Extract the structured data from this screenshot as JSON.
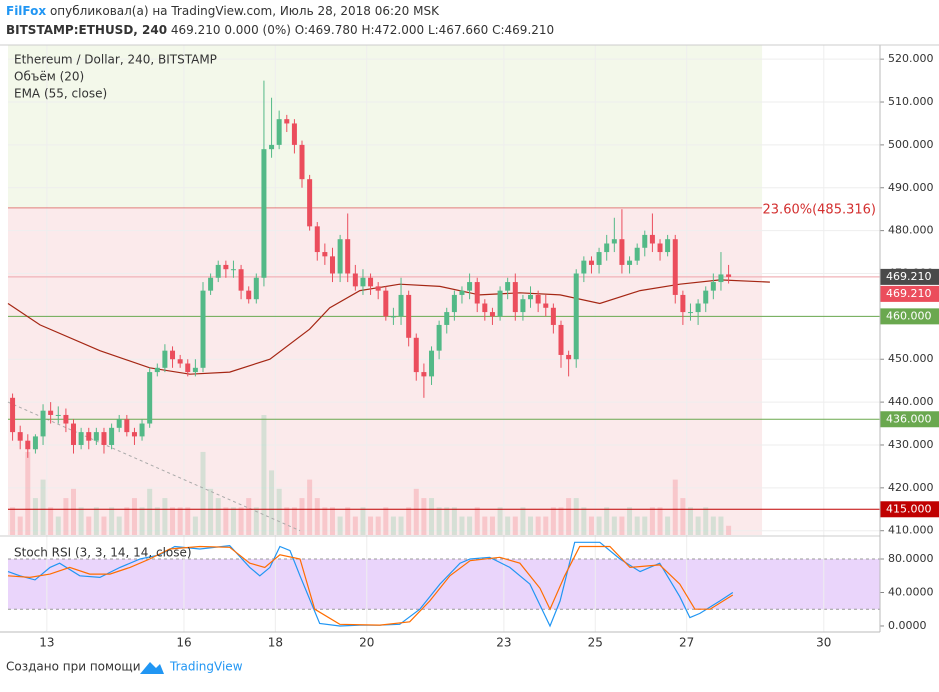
{
  "header": {
    "author": "FilFox",
    "published": "опубликовал(а) на TradingView.com, Июль 28, 2018 06:20 MSK",
    "symbol": "BITSTAMP:ETHUSD, 240",
    "quote": "469.210 0.000 (0%) O:469.780 H:472.000 L:467.660 C:469.210"
  },
  "footer": {
    "text": "Создано при помощи",
    "brand": "TradingView"
  },
  "chart_data": {
    "type": "candlestick",
    "title": "Ethereum / Dollar, 240, BITSTAMP",
    "colors": {
      "up": "#53b987",
      "down": "#eb4d5c"
    },
    "xlim": [
      12.15,
      31.23
    ],
    "xticks": [
      13,
      16,
      18,
      20,
      23,
      25,
      27,
      30
    ],
    "ylim": [
      409,
      523.3
    ],
    "yticks": [
      {
        "value": 410,
        "label": "410.000"
      },
      {
        "value": 420,
        "label": "420.000"
      },
      {
        "value": 430,
        "label": "430.000"
      },
      {
        "value": 440,
        "label": "440.000"
      },
      {
        "value": 450,
        "label": "450.000"
      },
      {
        "value": 460,
        "label": "460.000"
      },
      {
        "value": 470,
        "label": "470.000"
      },
      {
        "value": 480,
        "label": "480.000"
      },
      {
        "value": 490,
        "label": "490.000"
      },
      {
        "value": 500,
        "label": "500.000"
      },
      {
        "value": 510,
        "label": "510.000"
      },
      {
        "value": 520,
        "label": "520.000"
      }
    ],
    "grid": true,
    "x": [
      12.25,
      12.417,
      12.583,
      12.75,
      12.917,
      13.083,
      13.25,
      13.417,
      13.583,
      13.75,
      13.917,
      14.083,
      14.25,
      14.417,
      14.583,
      14.75,
      14.917,
      15.083,
      15.25,
      15.417,
      15.583,
      15.75,
      15.917,
      16.083,
      16.25,
      16.417,
      16.583,
      16.75,
      16.917,
      17.083,
      17.25,
      17.417,
      17.583,
      17.75,
      17.917,
      18.083,
      18.25,
      18.417,
      18.583,
      18.75,
      18.917,
      19.083,
      19.25,
      19.417,
      19.583,
      19.75,
      19.917,
      20.083,
      20.25,
      20.417,
      20.583,
      20.75,
      20.917,
      21.083,
      21.25,
      21.417,
      21.583,
      21.75,
      21.917,
      22.083,
      22.25,
      22.417,
      22.583,
      22.75,
      22.917,
      23.083,
      23.25,
      23.417,
      23.583,
      23.75,
      23.917,
      24.083,
      24.25,
      24.417,
      24.583,
      24.75,
      24.917,
      25.083,
      25.25,
      25.417,
      25.583,
      25.75,
      25.917,
      26.083,
      26.25,
      26.417,
      26.583,
      26.75,
      26.917,
      27.083,
      27.25,
      27.417,
      27.583,
      27.75,
      27.917
    ],
    "open": [
      441,
      433,
      431,
      429,
      432,
      438,
      437,
      437,
      435,
      430,
      433,
      431,
      433,
      430,
      434,
      436,
      433,
      432,
      435,
      447,
      448,
      452,
      450,
      449,
      447,
      448,
      466,
      469,
      472,
      471,
      471,
      466,
      464,
      469,
      499,
      500,
      506,
      505,
      500,
      492,
      481,
      475,
      474,
      470,
      478,
      470,
      467,
      469,
      467,
      466,
      460,
      460,
      465,
      455,
      447,
      446,
      452,
      458,
      461,
      465,
      466,
      468,
      463,
      461,
      460,
      466,
      468,
      461,
      464,
      465,
      463,
      462,
      458,
      451,
      450,
      470,
      473,
      472,
      475,
      477,
      478,
      472,
      473,
      476,
      479,
      477,
      475,
      478,
      465,
      461,
      461,
      463,
      466,
      468,
      469.78
    ],
    "high": [
      442,
      434.5,
      432.5,
      432.5,
      439.5,
      440,
      439,
      438.5,
      436,
      434,
      434,
      434,
      434,
      435,
      437,
      437,
      434,
      436,
      448,
      449,
      453.5,
      453,
      451,
      450,
      450,
      468,
      470,
      473,
      473,
      473,
      472,
      467,
      470,
      515,
      511,
      508,
      507,
      506,
      501,
      493,
      482,
      477,
      476,
      479,
      484,
      472,
      471,
      470,
      468,
      467,
      462,
      469,
      466,
      456,
      449,
      453,
      459,
      462,
      466,
      467,
      470,
      469,
      464,
      462,
      467,
      469,
      470,
      465,
      467,
      466,
      465,
      463,
      459,
      452,
      471,
      474,
      474,
      476,
      479,
      483,
      485,
      474,
      477,
      480,
      484,
      478,
      479,
      479,
      466,
      463,
      464,
      467,
      470,
      475,
      472
    ],
    "low": [
      431,
      429,
      427,
      428,
      430,
      435,
      435,
      433,
      428,
      429,
      429,
      430,
      428,
      429,
      433,
      432,
      430,
      431,
      434,
      446,
      447,
      448,
      448,
      446,
      446,
      447,
      465,
      468,
      469,
      469,
      464,
      463,
      463,
      467,
      497,
      499,
      503,
      498,
      490,
      480,
      473,
      472,
      468,
      468,
      468,
      466,
      465,
      465,
      464,
      459,
      458,
      458,
      453,
      445,
      441,
      444,
      450,
      456,
      459,
      463,
      464,
      461,
      459,
      458,
      459,
      464,
      459,
      459,
      462,
      461,
      460,
      456,
      448,
      446,
      448,
      468,
      470,
      470,
      473,
      475,
      470,
      470,
      472,
      474,
      475,
      473,
      474,
      463,
      458,
      459,
      458,
      461,
      464,
      466,
      467.66
    ],
    "close": [
      433,
      431,
      429,
      432,
      438,
      437,
      437,
      435,
      430,
      433,
      431,
      433,
      430,
      434,
      436,
      433,
      432,
      435,
      447,
      448,
      452,
      450,
      449,
      447,
      448,
      466,
      469,
      472,
      471,
      471,
      466,
      464,
      469,
      499,
      500,
      506,
      505,
      500,
      492,
      481,
      475,
      474,
      470,
      478,
      470,
      467,
      469,
      467,
      466,
      460,
      460,
      465,
      455,
      447,
      446,
      452,
      458,
      461,
      465,
      466,
      468,
      463,
      461,
      460,
      466,
      468,
      461,
      464,
      465,
      463,
      462,
      458,
      451,
      450,
      470,
      473,
      472,
      475,
      477,
      478,
      472,
      473,
      476,
      479,
      477,
      475,
      478,
      465,
      461,
      461,
      463,
      466,
      468,
      469.78,
      469.21
    ],
    "volume": {
      "name": "Объём (20)",
      "values": [
        3,
        2,
        9,
        4,
        6,
        3,
        2,
        4,
        5,
        3,
        2,
        3,
        2,
        3,
        2,
        3,
        4,
        3,
        5,
        3,
        4,
        3,
        3,
        3,
        2,
        9,
        5,
        4,
        3,
        3,
        3,
        4,
        3,
        13,
        7,
        5,
        3,
        3,
        4,
        6,
        4,
        3,
        3,
        2,
        3,
        2,
        3,
        2,
        2,
        3,
        2,
        2,
        3,
        5,
        4,
        4,
        3,
        3,
        3,
        2,
        2,
        3,
        2,
        2,
        3,
        2,
        2,
        3,
        2,
        2,
        2,
        3,
        3,
        4,
        4,
        3,
        2,
        2,
        3,
        2,
        2,
        3,
        2,
        2,
        3,
        3,
        2,
        6,
        4,
        3,
        2,
        3,
        2,
        2,
        1
      ]
    },
    "ema": {
      "name": "EMA (55, close)",
      "color": "#a52714",
      "x": [
        12.15,
        12.85,
        14.16,
        15.25,
        16.13,
        17.0,
        17.88,
        18.75,
        19.19,
        19.85,
        20.72,
        21.6,
        22.47,
        23.35,
        24.23,
        25.1,
        25.98,
        26.85,
        27.73,
        28.82
      ],
      "values": [
        463,
        458,
        452,
        448,
        446.5,
        447,
        450,
        457,
        462,
        466,
        467.5,
        467,
        465,
        465.5,
        465,
        463,
        466,
        467.5,
        468.5,
        468
      ]
    },
    "fibonacci": {
      "level": 485.316,
      "label": "23.60%(485.316)",
      "x_end": 28.65,
      "color": "#d32f2f"
    },
    "trendline": {
      "x": [
        12.15,
        18.54
      ],
      "y": [
        440,
        410
      ]
    },
    "levels": [
      {
        "value": 469.21,
        "label": "469.210",
        "color": "#4a4a4a",
        "line": "#f0b0b6"
      },
      {
        "value": 469.21,
        "label": "469.210",
        "color": "#eb4d5c",
        "line": "#f0b0b6"
      },
      {
        "value": 460,
        "label": "460.000",
        "color": "#6aa84f",
        "line": "#6aa84f"
      },
      {
        "value": 436,
        "label": "436.000",
        "color": "#6aa84f",
        "line": "#6aa84f"
      },
      {
        "value": 415,
        "label": "415.000",
        "color": "#c00000",
        "line": "#c00000"
      }
    ],
    "stoch": {
      "name": "Stoch RSI (3, 3, 14, 14, close)",
      "ylim": [
        -7.2,
        106.3
      ],
      "yticks": [
        {
          "value": 0,
          "label": "0.0000"
        },
        {
          "value": 40,
          "label": "40.0000"
        },
        {
          "value": 80,
          "label": "80.0000"
        }
      ],
      "band": [
        20,
        80
      ],
      "k": {
        "color": "#2196f3",
        "x": [
          12.15,
          12.41,
          12.74,
          13.07,
          13.28,
          13.72,
          14.16,
          14.6,
          15.04,
          15.47,
          15.8,
          16.35,
          17.0,
          17.44,
          17.66,
          17.88,
          18.1,
          18.32,
          18.54,
          18.97,
          19.41,
          19.85,
          20.29,
          20.72,
          21.16,
          21.6,
          22.04,
          22.26,
          22.69,
          23.13,
          23.57,
          24.01,
          24.23,
          24.55,
          25.1,
          25.54,
          25.98,
          26.41,
          26.85,
          27.07,
          27.29,
          27.73,
          28.01
        ],
        "values": [
          65,
          60,
          55,
          70,
          75,
          60,
          58,
          70,
          80,
          85,
          95,
          92,
          96,
          70,
          60,
          70,
          95,
          90,
          60,
          3,
          0,
          1,
          1,
          2,
          20,
          50,
          75,
          80,
          82,
          70,
          50,
          0,
          30,
          100,
          100,
          80,
          65,
          75,
          35,
          10,
          15,
          30,
          40
        ]
      },
      "d": {
        "color": "#ff6d00",
        "x": [
          12.15,
          12.63,
          13.07,
          13.5,
          13.94,
          14.38,
          14.82,
          15.25,
          15.69,
          16.35,
          17.0,
          17.44,
          17.77,
          18.1,
          18.54,
          18.86,
          19.41,
          20.29,
          20.94,
          21.38,
          21.82,
          22.26,
          22.91,
          23.35,
          23.79,
          24.01,
          24.33,
          24.66,
          25.32,
          25.76,
          26.41,
          26.85,
          27.18,
          27.51,
          28.01
        ],
        "values": [
          60,
          58,
          62,
          70,
          62,
          62,
          70,
          80,
          92,
          95,
          94,
          75,
          70,
          85,
          80,
          20,
          2,
          1,
          5,
          30,
          60,
          78,
          82,
          75,
          45,
          20,
          60,
          95,
          95,
          70,
          73,
          50,
          20,
          20,
          37
        ]
      }
    }
  }
}
